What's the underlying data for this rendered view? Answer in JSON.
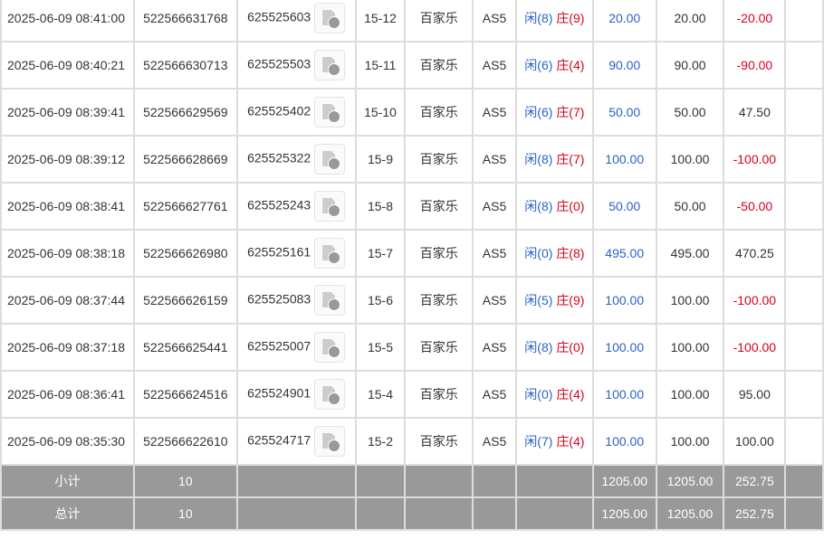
{
  "rows": [
    {
      "time": "2025-06-09 08:41:00",
      "bet_id": "522566631768",
      "game_id": "625525603",
      "round": "15-12",
      "game": "百家乐",
      "table": "AS5",
      "player": "闲(8)",
      "banker": "庄(9)",
      "bet": "20.00",
      "valid": "20.00",
      "result": "-20.00"
    },
    {
      "time": "2025-06-09 08:40:21",
      "bet_id": "522566630713",
      "game_id": "625525503",
      "round": "15-11",
      "game": "百家乐",
      "table": "AS5",
      "player": "闲(6)",
      "banker": "庄(4)",
      "bet": "90.00",
      "valid": "90.00",
      "result": "-90.00"
    },
    {
      "time": "2025-06-09 08:39:41",
      "bet_id": "522566629569",
      "game_id": "625525402",
      "round": "15-10",
      "game": "百家乐",
      "table": "AS5",
      "player": "闲(6)",
      "banker": "庄(7)",
      "bet": "50.00",
      "valid": "50.00",
      "result": "47.50"
    },
    {
      "time": "2025-06-09 08:39:12",
      "bet_id": "522566628669",
      "game_id": "625525322",
      "round": "15-9",
      "game": "百家乐",
      "table": "AS5",
      "player": "闲(8)",
      "banker": "庄(7)",
      "bet": "100.00",
      "valid": "100.00",
      "result": "-100.00"
    },
    {
      "time": "2025-06-09 08:38:41",
      "bet_id": "522566627761",
      "game_id": "625525243",
      "round": "15-8",
      "game": "百家乐",
      "table": "AS5",
      "player": "闲(8)",
      "banker": "庄(0)",
      "bet": "50.00",
      "valid": "50.00",
      "result": "-50.00"
    },
    {
      "time": "2025-06-09 08:38:18",
      "bet_id": "522566626980",
      "game_id": "625525161",
      "round": "15-7",
      "game": "百家乐",
      "table": "AS5",
      "player": "闲(0)",
      "banker": "庄(8)",
      "bet": "495.00",
      "valid": "495.00",
      "result": "470.25"
    },
    {
      "time": "2025-06-09 08:37:44",
      "bet_id": "522566626159",
      "game_id": "625525083",
      "round": "15-6",
      "game": "百家乐",
      "table": "AS5",
      "player": "闲(5)",
      "banker": "庄(9)",
      "bet": "100.00",
      "valid": "100.00",
      "result": "-100.00"
    },
    {
      "time": "2025-06-09 08:37:18",
      "bet_id": "522566625441",
      "game_id": "625525007",
      "round": "15-5",
      "game": "百家乐",
      "table": "AS5",
      "player": "闲(8)",
      "banker": "庄(0)",
      "bet": "100.00",
      "valid": "100.00",
      "result": "-100.00"
    },
    {
      "time": "2025-06-09 08:36:41",
      "bet_id": "522566624516",
      "game_id": "625524901",
      "round": "15-4",
      "game": "百家乐",
      "table": "AS5",
      "player": "闲(0)",
      "banker": "庄(4)",
      "bet": "100.00",
      "valid": "100.00",
      "result": "95.00"
    },
    {
      "time": "2025-06-09 08:35:30",
      "bet_id": "522566622610",
      "game_id": "625524717",
      "round": "15-2",
      "game": "百家乐",
      "table": "AS5",
      "player": "闲(7)",
      "banker": "庄(4)",
      "bet": "100.00",
      "valid": "100.00",
      "result": "100.00"
    }
  ],
  "subtotal": {
    "label": "小计",
    "count": "10",
    "bet": "1205.00",
    "valid": "1205.00",
    "result": "252.75"
  },
  "total": {
    "label": "总计",
    "count": "10",
    "bet": "1205.00",
    "valid": "1205.00",
    "result": "252.75"
  },
  "colors": {
    "player": "#2a62c9",
    "loss": "#d9001b",
    "summary_bg": "#999999"
  }
}
